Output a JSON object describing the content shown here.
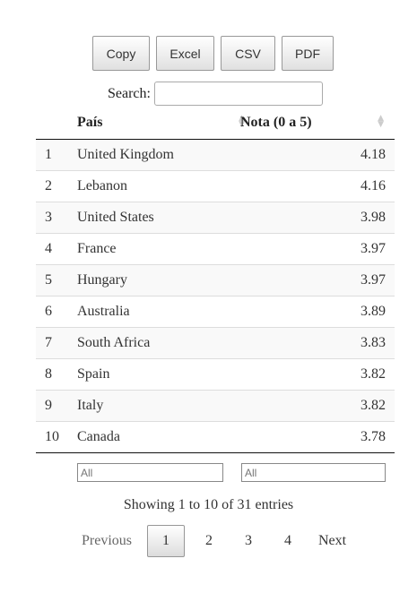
{
  "buttons": [
    {
      "label": "Copy"
    },
    {
      "label": "Excel"
    },
    {
      "label": "CSV"
    },
    {
      "label": "PDF"
    }
  ],
  "search": {
    "label": "Search:",
    "value": ""
  },
  "table": {
    "columns": {
      "index": "",
      "country": "País",
      "score": "Nota (0 a 5)"
    },
    "rows": [
      {
        "idx": "1",
        "country": "United Kingdom",
        "score": "4.18"
      },
      {
        "idx": "2",
        "country": "Lebanon",
        "score": "4.16"
      },
      {
        "idx": "3",
        "country": "United States",
        "score": "3.98"
      },
      {
        "idx": "4",
        "country": "France",
        "score": "3.97"
      },
      {
        "idx": "5",
        "country": "Hungary",
        "score": "3.97"
      },
      {
        "idx": "6",
        "country": "Australia",
        "score": "3.89"
      },
      {
        "idx": "7",
        "country": "South Africa",
        "score": "3.83"
      },
      {
        "idx": "8",
        "country": "Spain",
        "score": "3.82"
      },
      {
        "idx": "9",
        "country": "Italy",
        "score": "3.82"
      },
      {
        "idx": "10",
        "country": "Canada",
        "score": "3.78"
      }
    ]
  },
  "filters": {
    "country_placeholder": "All",
    "score_placeholder": "All"
  },
  "info": "Showing 1 to 10 of 31 entries",
  "pagination": {
    "previous": "Previous",
    "pages": [
      "1",
      "2",
      "3",
      "4"
    ],
    "current": "1",
    "next": "Next"
  },
  "icons": {
    "sort": "sort-both-icon"
  }
}
